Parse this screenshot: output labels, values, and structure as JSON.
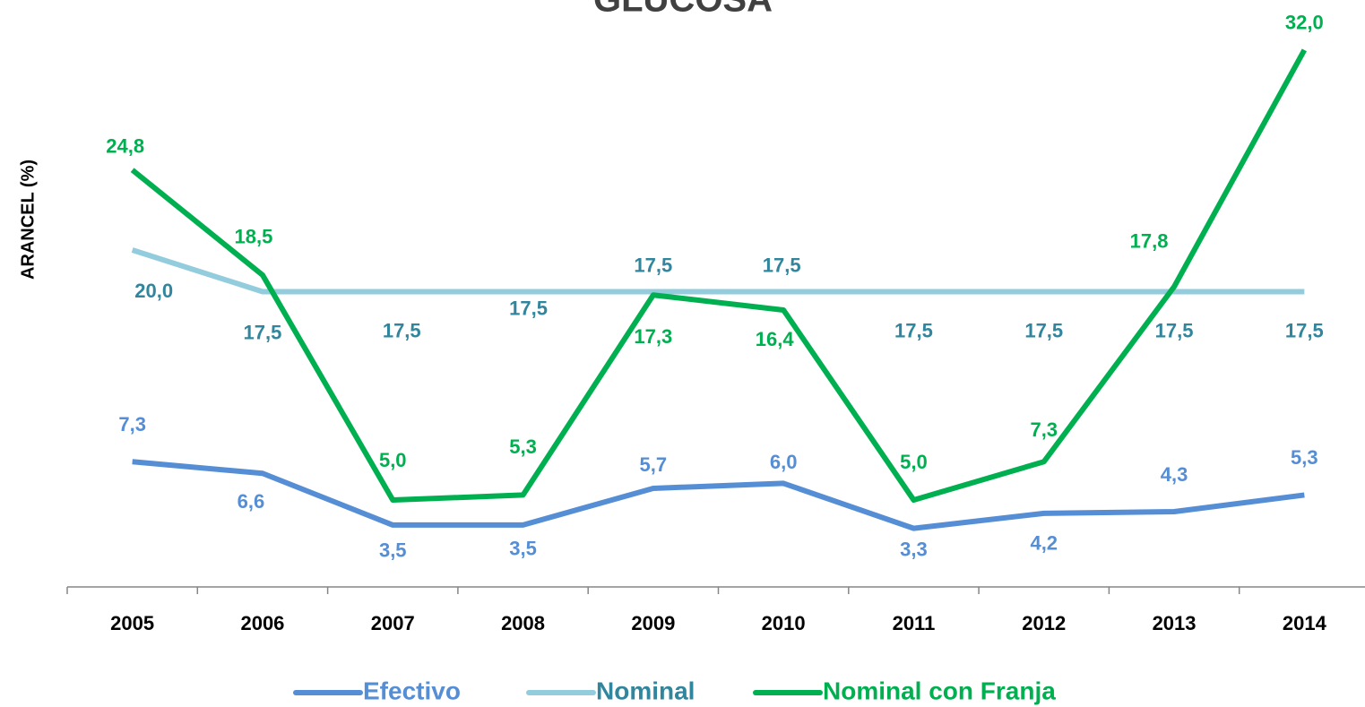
{
  "chart_data": {
    "type": "line",
    "title": "GLUCOSA",
    "y_label": "ARANCEL (%)",
    "categories": [
      "2005",
      "2006",
      "2007",
      "2008",
      "2009",
      "2010",
      "2011",
      "2012",
      "2013",
      "2014"
    ],
    "ylim": [
      0,
      35
    ],
    "series": [
      {
        "name": "Efectivo",
        "color": "#558ed5",
        "label_color": "#558ed5",
        "values": [
          7.3,
          6.6,
          3.5,
          3.5,
          5.7,
          6.0,
          3.3,
          4.2,
          4.3,
          5.3
        ],
        "value_labels": [
          "7,3",
          "6,6",
          "3,5",
          "3,5",
          "5,7",
          "6,0",
          "3,3",
          "4,2",
          "4,3",
          "5,3"
        ]
      },
      {
        "name": "Nominal",
        "color": "#93cddd",
        "label_color": "#31859c",
        "values": [
          20.0,
          17.5,
          17.5,
          17.5,
          17.5,
          17.5,
          17.5,
          17.5,
          17.5,
          17.5
        ],
        "value_labels": [
          "20,0",
          "17,5",
          "17,5",
          "17,5",
          "17,5",
          "17,5",
          "17,5",
          "17,5",
          "17,5",
          "17,5"
        ]
      },
      {
        "name": "Nominal con Franja",
        "color": "#00b050",
        "label_color": "#00b050",
        "values": [
          24.8,
          18.5,
          5.0,
          5.3,
          17.3,
          16.4,
          5.0,
          7.3,
          17.8,
          32.0
        ],
        "value_labels": [
          "24,8",
          "18,5",
          "5,0",
          "5,3",
          "17,3",
          "16,4",
          "5,0",
          "7,3",
          "17,8",
          "32,0"
        ]
      }
    ]
  }
}
